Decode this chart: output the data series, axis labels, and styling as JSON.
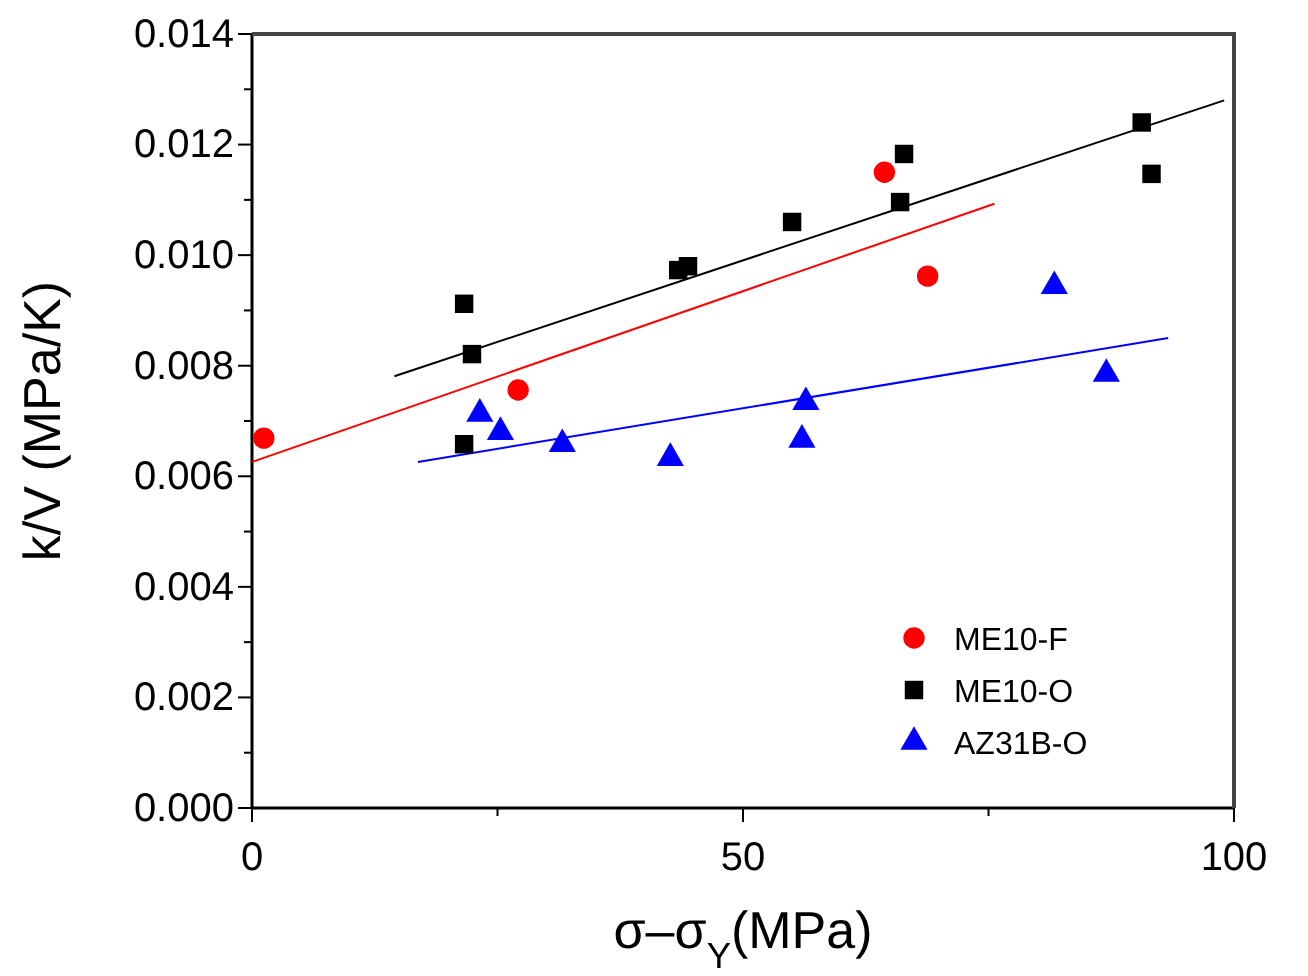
{
  "chart_data": {
    "type": "scatter",
    "xlabel": "σ–σ$_{Y}$(MPa)",
    "ylabel": "k/V (MPa/K)",
    "xlim": [
      0,
      100
    ],
    "ylim": [
      0,
      0.014
    ],
    "xticks": [
      0,
      {
        "value": 25,
        "label": null
      },
      50,
      {
        "value": 75,
        "label": null
      },
      100
    ],
    "yticks": [
      {
        "value": 0,
        "label": "0.000"
      },
      {
        "value": 0.001,
        "label": null
      },
      {
        "value": 0.002,
        "label": "0.002"
      },
      {
        "value": 0.003,
        "label": null
      },
      {
        "value": 0.004,
        "label": "0.004"
      },
      {
        "value": 0.005,
        "label": null
      },
      {
        "value": 0.006,
        "label": "0.006"
      },
      {
        "value": 0.007,
        "label": null
      },
      {
        "value": 0.008,
        "label": "0.008"
      },
      {
        "value": 0.009,
        "label": null
      },
      {
        "value": 0.01,
        "label": "0.010"
      },
      {
        "value": 0.011,
        "label": null
      },
      {
        "value": 0.012,
        "label": "0.012"
      },
      {
        "value": 0.013,
        "label": null
      },
      {
        "value": 0.014,
        "label": "0.014"
      }
    ],
    "grid": false,
    "legend": "bottom right",
    "series": [
      {
        "name": "ME10-F",
        "color": "#ff0000",
        "marker": "circle",
        "x": [
          1.2,
          27.1,
          64.4,
          68.8
        ],
        "values": [
          0.00669,
          0.00756,
          0.0115,
          0.00962
        ]
      },
      {
        "name": "ME10-O",
        "color": "#000000",
        "marker": "square",
        "x": [
          21.6,
          22.4,
          21.6,
          43.4,
          44.4,
          55.0,
          66.0,
          66.4,
          90.6,
          91.6
        ],
        "values": [
          0.00912,
          0.00821,
          0.00658,
          0.00973,
          0.0098,
          0.0106,
          0.01096,
          0.01183,
          0.0124,
          0.01147
        ]
      },
      {
        "name": "AZ31B-O",
        "color": "#0000ff",
        "marker": "triangle",
        "x": [
          23.2,
          25.3,
          31.6,
          42.6,
          56.4,
          56.0,
          81.7,
          87.0
        ],
        "values": [
          0.00713,
          0.0068,
          0.00658,
          0.00633,
          0.00734,
          0.00666,
          0.00944,
          0.00785
        ]
      },
      {
        "type": "line",
        "color": "#ff0000",
        "marker": "none",
        "x": [
          0,
          75.6
        ],
        "values": [
          0.00626,
          0.01093
        ]
      },
      {
        "type": "line",
        "color": "#000000",
        "marker": "none",
        "x": [
          14.5,
          99
        ],
        "values": [
          0.00781,
          0.0128
        ]
      },
      {
        "type": "line",
        "color": "#0000ff",
        "marker": "none",
        "x": [
          16.9,
          93.3
        ],
        "values": [
          0.00626,
          0.0085
        ]
      }
    ]
  }
}
